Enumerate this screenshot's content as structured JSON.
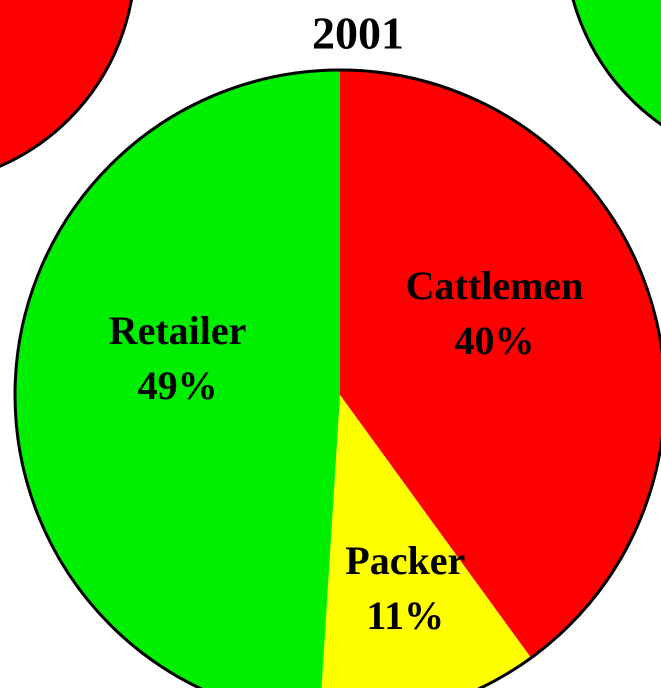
{
  "chart_data": {
    "type": "pie",
    "title": "2001",
    "categories": [
      "Cattlemen",
      "Packer",
      "Retailer"
    ],
    "values": [
      40,
      11,
      49
    ],
    "value_labels": [
      "40%",
      "11%",
      "49%"
    ],
    "colors": [
      "#ff0000",
      "#ffff00",
      "#00ee00"
    ],
    "label_colors": [
      "#990000",
      "#000000",
      "#000000"
    ]
  }
}
